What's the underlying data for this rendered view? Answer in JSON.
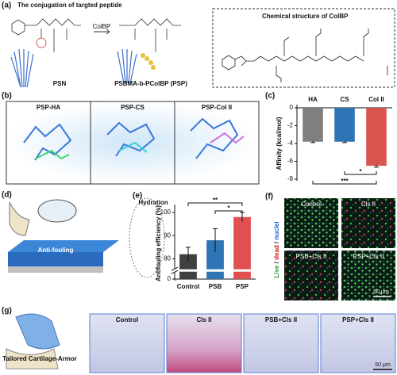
{
  "panel_a": {
    "label": "(a)",
    "title": "The conjugation of targted peptide",
    "reagent": "ColBP",
    "left_name": "PSN",
    "right_name": "PSBMA-b-PColBP (PSP)",
    "structure_title": "Chemical structure of ColBP"
  },
  "panel_b": {
    "label": "(b)",
    "views": [
      "PSP-HA",
      "PSP-CS",
      "PSP-Col II"
    ]
  },
  "panel_d": {
    "label": "(d)",
    "callouts": [
      "Hydration",
      "Anti-fouling"
    ]
  },
  "panel_f": {
    "label": "(f)",
    "stain": [
      "Live",
      "/",
      "dead",
      "/",
      "nuclei"
    ],
    "groups": [
      "Control",
      "Cls II",
      "PSB+Cls II",
      "PSP+Cls II"
    ],
    "scale_bar": "50 μm"
  },
  "panel_g": {
    "label": "(g)",
    "armor": "Tailored Cartilage-Armor",
    "groups": [
      "Control",
      "Cls II",
      "PSB+Cls II",
      "PSP+Cls II"
    ],
    "scale_bar": "50 μm"
  },
  "chart_data": [
    {
      "type": "bar",
      "label": "(c)",
      "ylabel": "Affinity (kcal/mol)",
      "categories": [
        "HA",
        "CS",
        "Col II"
      ],
      "values": [
        -3.8,
        -3.8,
        -6.5
      ],
      "errors": [
        0.1,
        0.1,
        0.15
      ],
      "colors": [
        "#7f7f7f",
        "#2e75b6",
        "#d9534f"
      ],
      "ylim": [
        -8,
        0
      ],
      "yticks": [
        -8,
        -6,
        -4,
        -2,
        0
      ],
      "xaxis_position": "top",
      "significance": [
        {
          "from": 1,
          "to": 2,
          "label": "*"
        },
        {
          "from": 0,
          "to": 2,
          "label": "***"
        }
      ]
    },
    {
      "type": "bar",
      "label": "(e)",
      "ylabel": "Antifouling efficiency (%)",
      "categories": [
        "Control",
        "PSB",
        "PSP"
      ],
      "values": [
        82,
        88,
        98
      ],
      "errors": [
        3,
        5,
        2
      ],
      "colors": [
        "#404040",
        "#2e75b6",
        "#e05050"
      ],
      "ylim": [
        0,
        102
      ],
      "yticks": [
        0,
        80,
        90,
        100
      ],
      "axis_break": [
        5,
        75
      ],
      "xaxis_position": "bottom",
      "significance": [
        {
          "from": 0,
          "to": 2,
          "label": "**"
        },
        {
          "from": 1,
          "to": 2,
          "label": "*"
        }
      ]
    }
  ]
}
